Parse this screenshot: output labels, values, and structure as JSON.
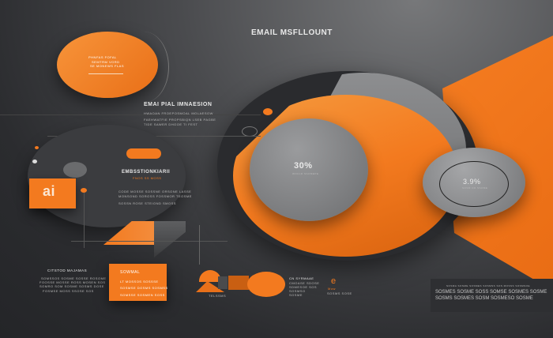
{
  "header": {
    "title": "EMAIL MSFLLOUNT"
  },
  "top_circle": {
    "text": [
      "PHNFAS FOFAL",
      "SEMTRM VORD",
      "SE MONEWS FLAS"
    ]
  },
  "section": {
    "title": "EMAI PIAL IMNAESION",
    "lines": [
      "HWAOAN FROEPOSMOAL MOLAESOW",
      "FAEHWATFIE PROPSBIQN LSEB PAGBE",
      "TIDE SAWER DHOOE TI FEST"
    ]
  },
  "mid_block": {
    "title": "EMBSSTIONKIARII",
    "subtitle": "FNOS SS MOSS",
    "lines": [
      "CODE MOSSE SOSSNE ORSONE LASSE",
      "MONSOND SOROSS FOSSMOR TEOSME",
      "SOSSN ROSE STEIOND SMOSS"
    ]
  },
  "logo": {
    "text": "ai"
  },
  "stats": {
    "big": "30%",
    "big_sub": "WOULD SSOMEPE",
    "small": "3.9%",
    "small_sub": "SOSM OR SSOME"
  },
  "left_bottom": {
    "title": "CITSTOD MAJAMAS",
    "lines": [
      "SOMSSOS SOSME SOSSE ROSOME",
      "FOOSSE MOSSE ROSS MOSEN SOS",
      "SOMRO SOM SOSME SOSMS DOSE",
      "FOSMSE MOSS SSOSE SOS"
    ]
  },
  "orange_box": {
    "title": "SOWMAL",
    "lines": [
      "LT MOSSOS SOSSSE",
      "SOSMSE DOSMS SOSMSS",
      "SOMSSE SOSMEN SOSS"
    ]
  },
  "shapes_label": "TELSSMS",
  "right_text": {
    "title": "CN SYRMAAE",
    "lines": [
      "CMOASE SDOSE",
      "SDMESOE SOS",
      "SOSMSO",
      "SOSME"
    ]
  },
  "brand": {
    "name": "Mow",
    "sub": "SOSMS SOSE"
  },
  "panel": {
    "title": "SOSMA SOSME SOSMES SOSMSS SOS MOSSS SOSMSOE",
    "body": "SOSMES SOSME SOSS SOMSE SOSMES SOSME SOSMS SOSMES SOSM SOSMESO SOSME"
  },
  "colors": {
    "orange": "#f37a1f",
    "dark": "#2b2c2f",
    "gray": "#8a8b8d"
  }
}
